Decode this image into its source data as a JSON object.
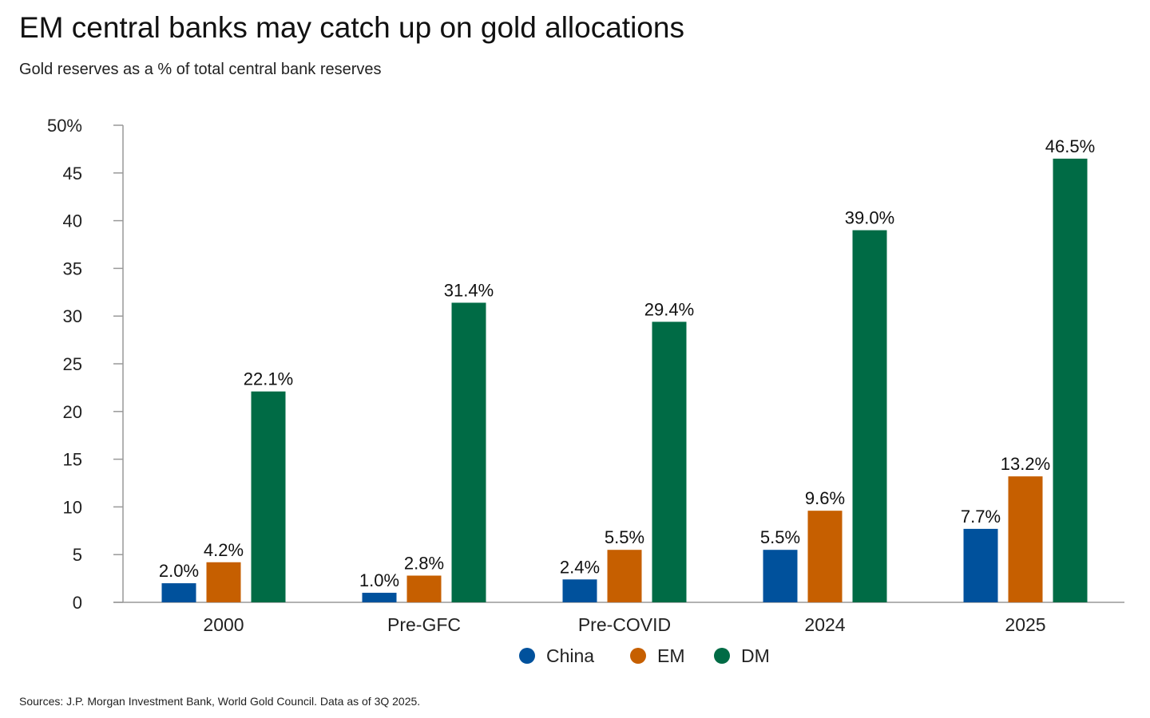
{
  "title": "EM central banks may catch up on gold allocations",
  "subtitle": "Gold reserves as a % of total central bank reserves",
  "source": "Sources: J.P. Morgan Investment Bank, World Gold Council. Data as of 3Q 2025.",
  "colors": {
    "china": "#00519c",
    "em": "#c65f00",
    "dm": "#006b45",
    "axis": "#999999",
    "text": "#222222"
  },
  "chart_data": {
    "type": "bar",
    "categories": [
      "2000",
      "Pre-GFC",
      "Pre-COVID",
      "2024",
      "2025"
    ],
    "series": [
      {
        "name": "China",
        "values": [
          2.0,
          1.0,
          2.4,
          5.5,
          7.7
        ],
        "labels": [
          "2.0%",
          "1.0%",
          "2.4%",
          "5.5%",
          "7.7%"
        ],
        "color": "#00519c"
      },
      {
        "name": "EM",
        "values": [
          4.2,
          2.8,
          5.5,
          9.6,
          13.2
        ],
        "labels": [
          "4.2%",
          "2.8%",
          "5.5%",
          "9.6%",
          "13.2%"
        ],
        "color": "#c65f00"
      },
      {
        "name": "DM",
        "values": [
          22.1,
          31.4,
          29.4,
          39.0,
          46.5
        ],
        "labels": [
          "22.1%",
          "31.4%",
          "29.4%",
          "39.0%",
          "46.5%"
        ],
        "color": "#006b45"
      }
    ],
    "ylim": [
      0,
      50
    ],
    "yticks": [
      0,
      5,
      10,
      15,
      20,
      25,
      30,
      35,
      40,
      45,
      50
    ],
    "ytick_labels": [
      "0",
      "5",
      "10",
      "15",
      "20",
      "25",
      "30",
      "35",
      "40",
      "45",
      "50%"
    ],
    "legend_position": "bottom-center",
    "grid": false
  }
}
